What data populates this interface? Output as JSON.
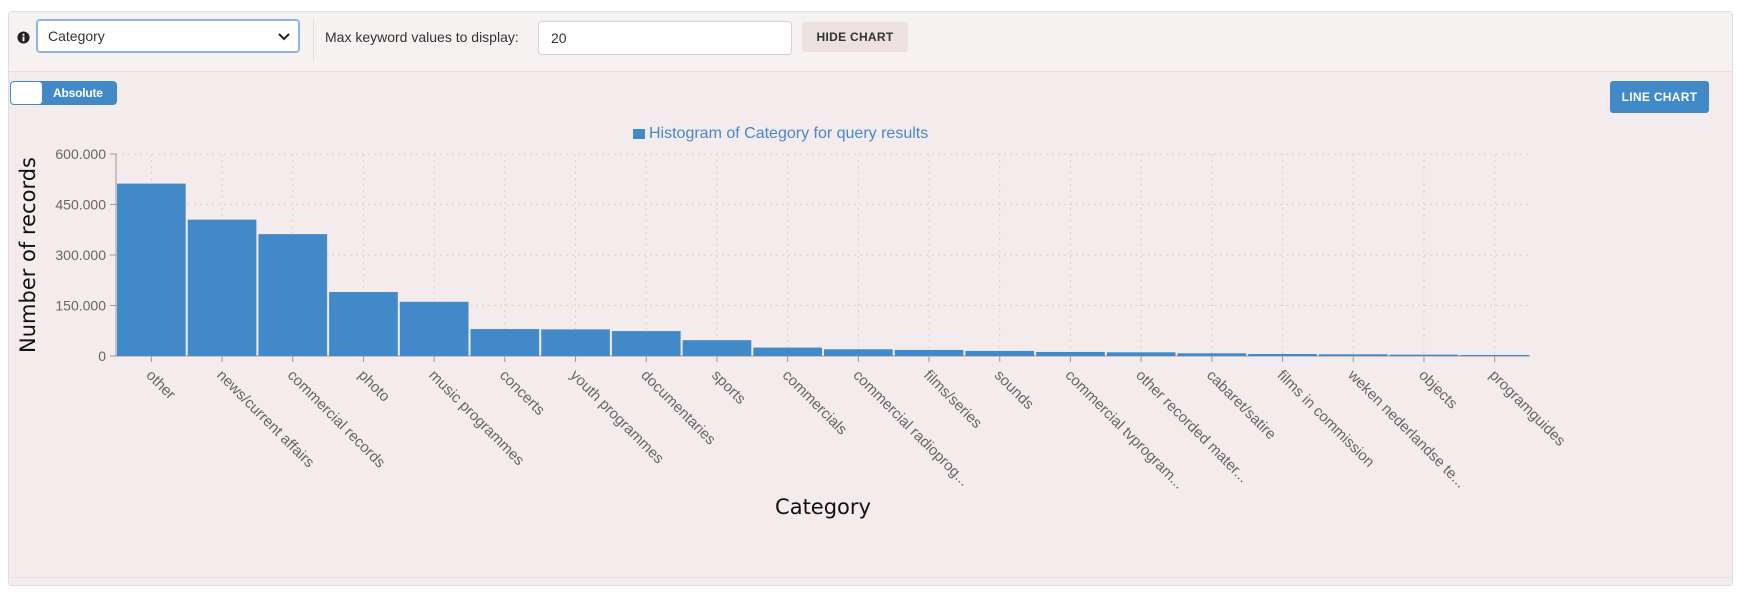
{
  "toolbar": {
    "select_value": "Category",
    "max_label": "Max keyword values to display:",
    "max_value": "20",
    "hide_chart_label": "HIDE CHART"
  },
  "toggle": {
    "label": "Absolute"
  },
  "line_chart_label": "LINE CHART",
  "icons": {
    "info": "info-circle-icon",
    "caret": "chevron-down-icon"
  },
  "colors": {
    "bar": "#4189c7",
    "legend_text": "#4a86c8",
    "panel": "#f4ecec"
  },
  "chart_data": {
    "type": "bar",
    "title": "Histogram of Category for query results",
    "legend": [
      "Histogram of Category for query results"
    ],
    "xlabel": "Category",
    "ylabel": "Number of records",
    "ylim": [
      0,
      600000
    ],
    "yticks": [
      "0",
      "150.000",
      "300.000",
      "450.000",
      "600.000"
    ],
    "grid": true,
    "categories": [
      "other",
      "news/current affairs",
      "commercial records",
      "photo",
      "music programmes",
      "concerts",
      "youth programmes",
      "documentaries",
      "sports",
      "commercials",
      "commercial radioprog...",
      "films/series",
      "sounds",
      "commercial tvprogram...",
      "other recorded mater...",
      "cabaret/satire",
      "films in commission",
      "weken nederlandse te...",
      "objects",
      "programguides"
    ],
    "values": [
      512000,
      405000,
      362000,
      190000,
      161000,
      80000,
      79000,
      74000,
      47000,
      25000,
      20000,
      18000,
      15000,
      12000,
      11000,
      8000,
      6000,
      5000,
      4000,
      3000
    ]
  }
}
